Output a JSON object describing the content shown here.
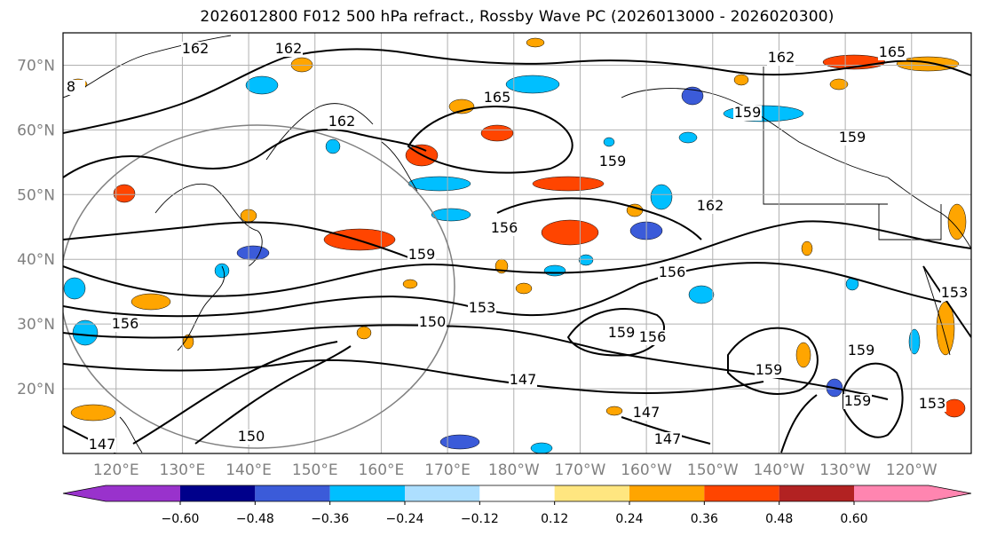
{
  "title": "2026012800 F012 500 hPa refract., Rossby Wave PC (2026013000 - 2026020300)",
  "map": {
    "lat_labels": [
      "70°N",
      "60°N",
      "50°N",
      "40°N",
      "30°N",
      "20°N"
    ],
    "lat_values": [
      70,
      60,
      50,
      40,
      30,
      20
    ],
    "lon_labels": [
      "120°E",
      "130°E",
      "140°E",
      "150°E",
      "160°E",
      "170°E",
      "180°W",
      "170°W",
      "160°W",
      "150°W",
      "140°W",
      "130°W",
      "120°W"
    ],
    "lon_values": [
      120,
      130,
      140,
      150,
      160,
      170,
      180,
      190,
      200,
      210,
      220,
      230,
      240
    ],
    "extent": {
      "lon_min": 112,
      "lon_max": 249,
      "lat_min": 10,
      "lat_max": 75
    },
    "contour_labels": [
      "162",
      "162",
      "162",
      "165",
      "159",
      "162",
      "159",
      "159",
      "156",
      "153",
      "150",
      "147",
      "147",
      "147",
      "156",
      "159",
      "159",
      "159",
      "153",
      "156",
      "147",
      "150",
      "8",
      "165",
      "162",
      "159",
      "156",
      "153",
      "159"
    ],
    "contour_levels": [
      147,
      150,
      153,
      156,
      159,
      162,
      165
    ]
  },
  "colorbar": {
    "tick_labels": [
      "−0.60",
      "−0.48",
      "−0.36",
      "−0.24",
      "−0.12",
      "0.12",
      "0.24",
      "0.36",
      "0.48",
      "0.60"
    ],
    "tick_values": [
      -0.6,
      -0.48,
      -0.36,
      -0.24,
      -0.12,
      0.12,
      0.24,
      0.36,
      0.48,
      0.6
    ],
    "colors": [
      "#9932CC",
      "#00008B",
      "#3B5BD9",
      "#00BFFF",
      "#ADDFFF",
      "#FFFFFF",
      "#FFE680",
      "#FFA500",
      "#FF4500",
      "#B22222",
      "#FF85B0"
    ]
  }
}
